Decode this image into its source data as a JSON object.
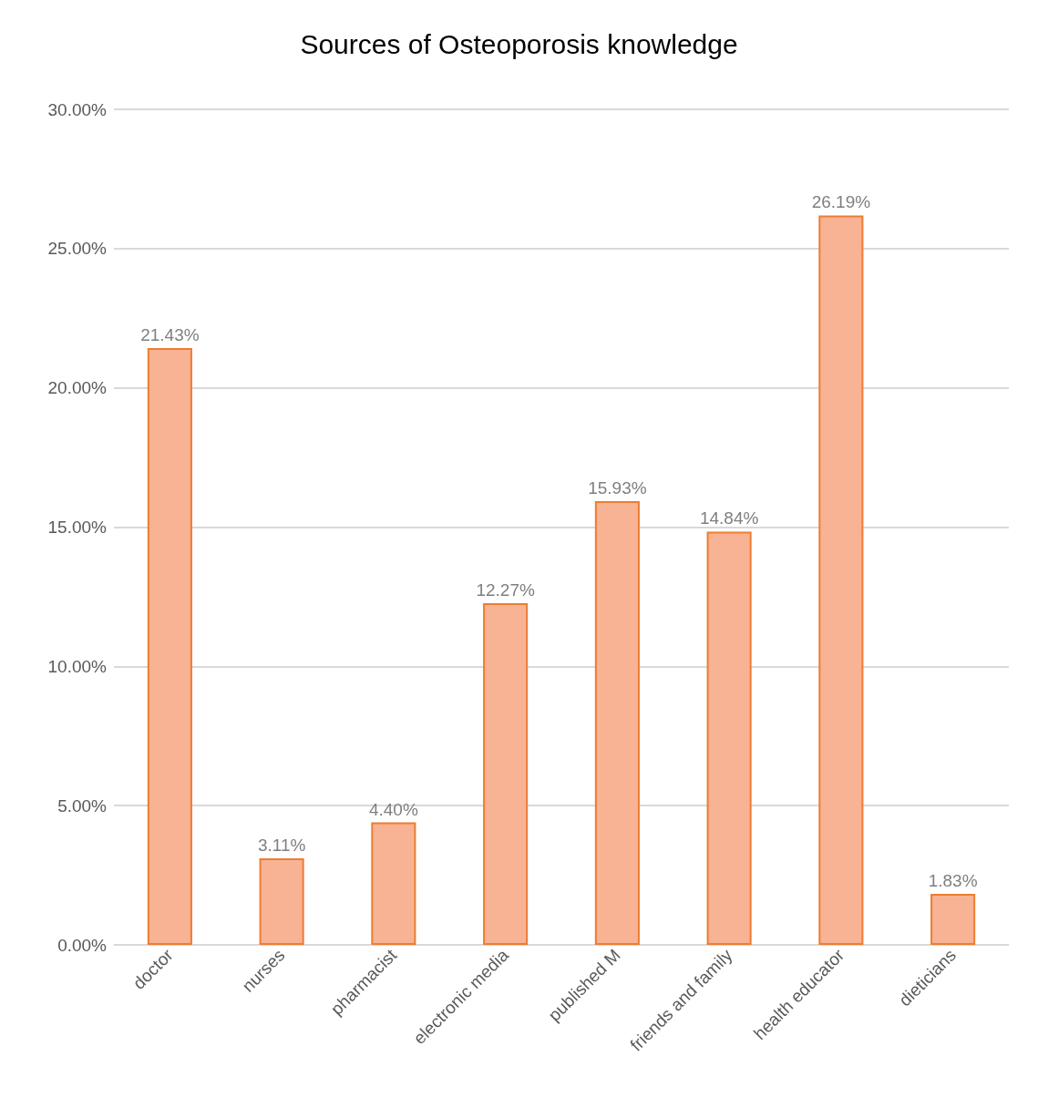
{
  "chart_data": {
    "type": "bar",
    "title": "Sources of Osteoporosis knowledge",
    "categories": [
      "doctor",
      "nurses",
      "pharmacist",
      "electronic media",
      "published M",
      "friends and family",
      "health educator",
      "dieticians"
    ],
    "values": [
      21.43,
      3.11,
      4.4,
      12.27,
      15.93,
      14.84,
      26.19,
      1.83
    ],
    "value_labels": [
      "21.43%",
      "3.11%",
      "4.40%",
      "12.27%",
      "15.93%",
      "14.84%",
      "26.19%",
      "1.83%"
    ],
    "color": "#f7b393",
    "ylim": [
      0,
      30
    ],
    "yticks": [
      {
        "value": 0,
        "label": "0.00%"
      },
      {
        "value": 5,
        "label": "5.00%"
      },
      {
        "value": 10,
        "label": "10.00%"
      },
      {
        "value": 15,
        "label": "15.00%"
      },
      {
        "value": 20,
        "label": "20.00%"
      },
      {
        "value": 25,
        "label": "25.00%"
      },
      {
        "value": 30,
        "label": "30.00%"
      }
    ],
    "grid": "y"
  }
}
